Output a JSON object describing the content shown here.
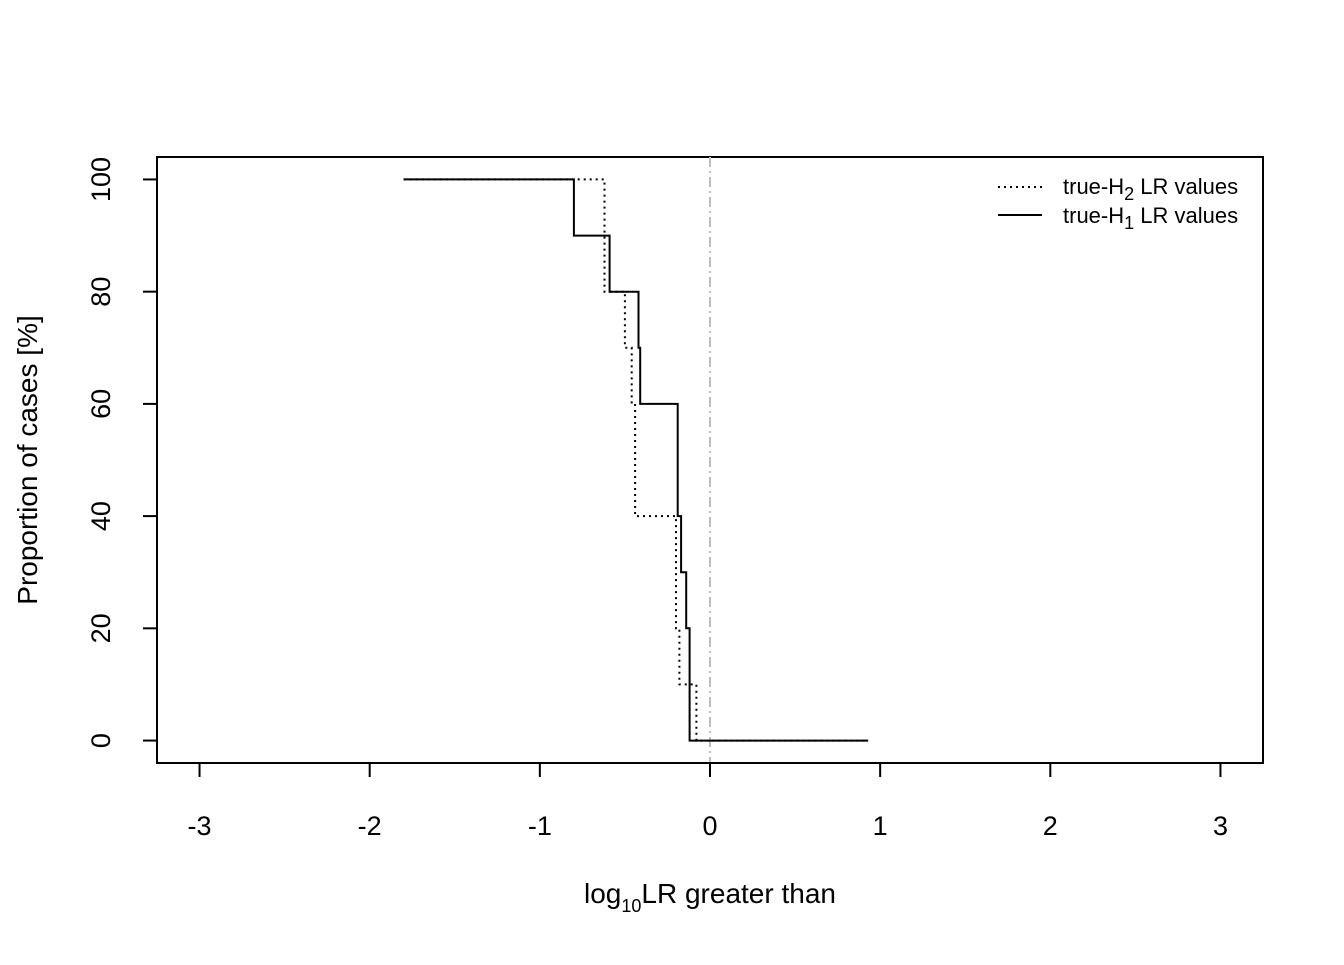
{
  "chart_data": {
    "type": "line",
    "xlabel_main": "log",
    "xlabel_sub": "10",
    "xlabel_rest": "LR greater than",
    "ylabel": "Proportion of cases [%]",
    "xlim": [
      -3.25,
      3.25
    ],
    "ylim": [
      -4,
      104
    ],
    "x_ticks": [
      -3,
      -2,
      -1,
      0,
      1,
      2,
      3
    ],
    "x_tick_labels": [
      "-3",
      "-2",
      "-1",
      "0",
      "1",
      "2",
      "3"
    ],
    "y_ticks": [
      0,
      20,
      40,
      60,
      80,
      100
    ],
    "y_tick_labels": [
      "0",
      "20",
      "40",
      "60",
      "80",
      "100"
    ],
    "reference_line_x": 0,
    "reference_color": "#bebebe",
    "legend_position": "top-right",
    "series": [
      {
        "legend_main": "true-H",
        "legend_sub": "2",
        "legend_rest": " LR values",
        "style": "dotted",
        "color": "#000000",
        "x": [
          -1.8,
          -0.62,
          -0.62,
          -0.5,
          -0.5,
          -0.46,
          -0.46,
          -0.44,
          -0.44,
          -0.2,
          -0.2,
          -0.18,
          -0.18,
          -0.08,
          -0.08,
          0.93
        ],
        "y": [
          100,
          100,
          80,
          80,
          70,
          70,
          60,
          60,
          40,
          40,
          20,
          20,
          10,
          10,
          0,
          0
        ]
      },
      {
        "legend_main": "true-H",
        "legend_sub": "1",
        "legend_rest": " LR values",
        "style": "solid",
        "color": "#000000",
        "x": [
          -1.8,
          -0.8,
          -0.8,
          -0.59,
          -0.59,
          -0.42,
          -0.42,
          -0.41,
          -0.41,
          -0.19,
          -0.19,
          -0.17,
          -0.17,
          -0.14,
          -0.14,
          -0.12,
          -0.12,
          0.93
        ],
        "y": [
          100,
          100,
          90,
          90,
          80,
          80,
          70,
          70,
          60,
          60,
          40,
          40,
          30,
          30,
          20,
          20,
          0,
          0
        ]
      }
    ]
  }
}
